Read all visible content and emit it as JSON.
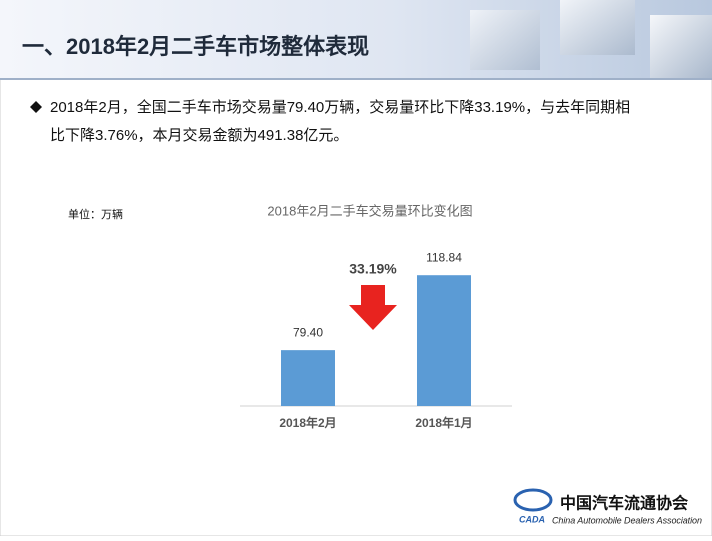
{
  "header": {
    "title": "一、2018年2月二手车市场整体表现"
  },
  "bullet": {
    "lines": [
      "2018年2月，全国二手车市场交易量79.40万辆，交易量环比下降33.19%，与去年同期相",
      "比下降3.76%，本月交易金额为491.38亿元。"
    ]
  },
  "chart_data": {
    "type": "bar",
    "title": "2018年2月二手车交易量环比变化图",
    "unit": "单位：万辆",
    "categories": [
      "2018年2月",
      "2018年1月"
    ],
    "values": [
      79.4,
      118.84
    ],
    "value_labels": [
      "79.40",
      "118.84"
    ],
    "color": "#5b9bd5",
    "ylim": [
      50,
      140
    ],
    "annotation": "33.19%",
    "grid": false
  },
  "logo": {
    "name": "中国汽车流通协会",
    "abbr": "CADA",
    "english": "China Automobile Dealers Association"
  }
}
